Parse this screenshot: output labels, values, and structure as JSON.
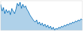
{
  "chart_data": {
    "type": "area",
    "values": [
      68,
      55,
      62,
      50,
      58,
      52,
      56,
      48,
      60,
      55,
      50,
      58,
      70,
      65,
      72,
      60,
      68,
      62,
      65,
      58,
      54,
      48,
      44,
      40,
      36,
      34,
      38,
      30,
      34,
      28,
      32,
      26,
      30,
      24,
      28,
      22,
      26,
      20,
      24,
      18,
      22,
      20,
      24,
      22,
      26,
      24,
      28,
      26,
      30,
      28,
      32,
      30,
      34,
      32,
      36,
      34,
      38,
      36,
      40,
      38
    ],
    "color": "#1a7abf",
    "ylim": [
      18,
      75
    ],
    "tick_labels": false
  }
}
